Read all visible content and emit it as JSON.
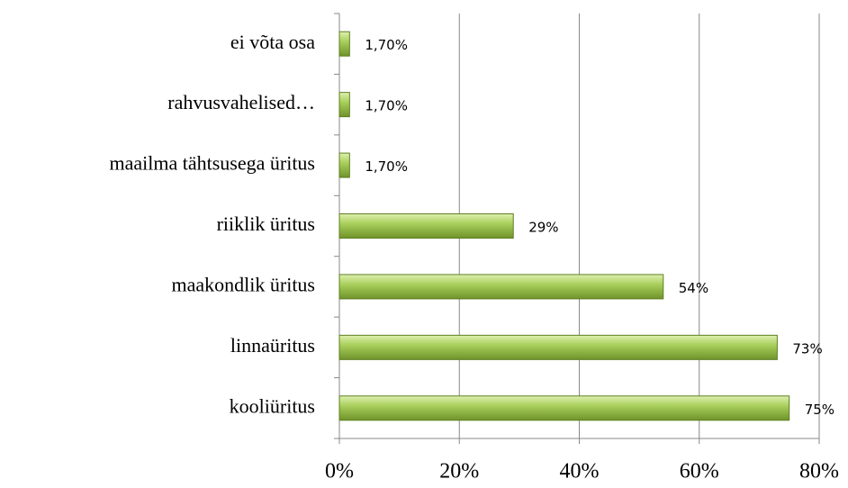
{
  "chart_data": {
    "type": "barh",
    "categories": [
      "ei võta osa",
      "rahvusvahelised…",
      "maailma tähtsusega üritus",
      "riiklik üritus",
      "maakondlik üritus",
      "linnaüritus",
      "kooliüritus"
    ],
    "values": [
      1.7,
      1.7,
      1.7,
      29,
      54,
      73,
      75
    ],
    "value_labels": [
      "1,70%",
      "1,70%",
      "1,70%",
      "29%",
      "54%",
      "73%",
      "75%"
    ],
    "color": "#9bc24a",
    "xlim": [
      0,
      80
    ],
    "xticks": [
      {
        "value": 0,
        "label": "0%"
      },
      {
        "value": 20,
        "label": "20%"
      },
      {
        "value": 40,
        "label": "40%"
      },
      {
        "value": 60,
        "label": "60%"
      },
      {
        "value": 80,
        "label": "80%"
      }
    ],
    "grid": true
  }
}
